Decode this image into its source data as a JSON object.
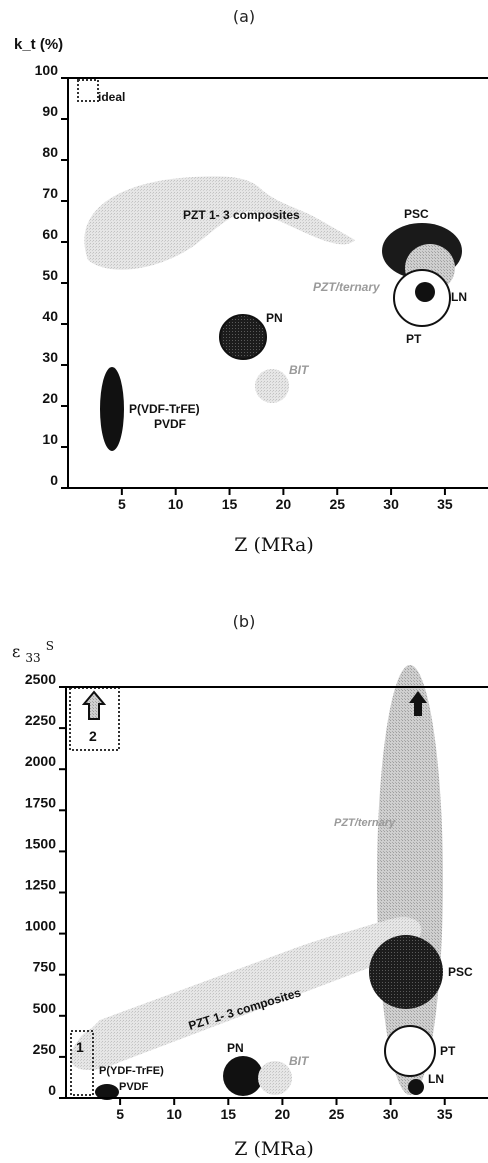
{
  "chart_data": [
    {
      "type": "scatter",
      "caption": "(a)",
      "ylabel": "k_t (%)",
      "xlabel": "Z (MRa)",
      "xlim": [
        0,
        39
      ],
      "ylim": [
        0,
        100
      ],
      "x_ticks": [
        "5",
        "10",
        "15",
        "20",
        "25",
        "30",
        "35"
      ],
      "y_ticks": [
        "0",
        "10",
        "20",
        "30",
        "40",
        "50",
        "60",
        "70",
        "80",
        "90",
        "100"
      ],
      "grid": false,
      "regions": [
        {
          "label": "PZT 1- 3 composites",
          "x": [
            2,
            29
          ],
          "y": [
            50,
            72
          ],
          "style": "light-gray"
        },
        {
          "label": "PSC",
          "x": 33,
          "y": 57,
          "style": "black"
        },
        {
          "label": "PZT/ternary",
          "x": 33.5,
          "y": 53,
          "style": "gray"
        },
        {
          "label": "PT",
          "x": 33,
          "y": 47,
          "style": "white"
        },
        {
          "label": "LN",
          "x": 34,
          "y": 48,
          "style": "black"
        },
        {
          "label": "PN",
          "x": 17.5,
          "y": 38,
          "style": "black"
        },
        {
          "label": "BIT",
          "x": 19.5,
          "y": 24,
          "style": "light-gray"
        },
        {
          "label": "P(VDF-TrFE)",
          "x": 4.5,
          "y": 20,
          "style": "black"
        },
        {
          "label": "PVDF",
          "x": 4.5,
          "y": 20,
          "style": "black"
        },
        {
          "label": "ideal",
          "x": 3,
          "y": 97,
          "style": "dotted-box"
        }
      ]
    },
    {
      "type": "scatter",
      "caption": "(b)",
      "ylabel": "ε 33 S",
      "xlabel": "Z (MRa)",
      "xlim": [
        0,
        39
      ],
      "ylim": [
        0,
        2500
      ],
      "x_ticks": [
        "5",
        "10",
        "15",
        "20",
        "25",
        "30",
        "35"
      ],
      "y_ticks": [
        "0",
        "250",
        "500",
        "750",
        "1000",
        "1250",
        "1500",
        "1750",
        "2000",
        "2250",
        "2500"
      ],
      "grid": false,
      "regions": [
        {
          "label": "PZT/ternary",
          "x": 33,
          "y": [
            800,
            2500
          ],
          "style": "gray"
        },
        {
          "label": "PZT 1- 3 composites",
          "x": [
            2,
            31
          ],
          "y": [
            200,
            900
          ],
          "style": "light-gray"
        },
        {
          "label": "PSC",
          "x": 33,
          "y": 640,
          "style": "black"
        },
        {
          "label": "PT",
          "x": 33,
          "y": 280,
          "style": "white"
        },
        {
          "label": "LN",
          "x": 33.5,
          "y": 90,
          "style": "black"
        },
        {
          "label": "PN",
          "x": 17,
          "y": 170,
          "style": "black"
        },
        {
          "label": "BIT",
          "x": 20,
          "y": 150,
          "style": "light-gray"
        },
        {
          "label": "P(YDF-TrFE)",
          "x": 4,
          "y": 90,
          "style": "black"
        },
        {
          "label": "PVDF",
          "x": 4,
          "y": 90,
          "style": "black"
        },
        {
          "label": "1",
          "x": 2.5,
          "y": 200,
          "style": "dotted-box"
        },
        {
          "label": "2",
          "x": 2.5,
          "y": 2300,
          "style": "dotted-box"
        }
      ]
    }
  ]
}
